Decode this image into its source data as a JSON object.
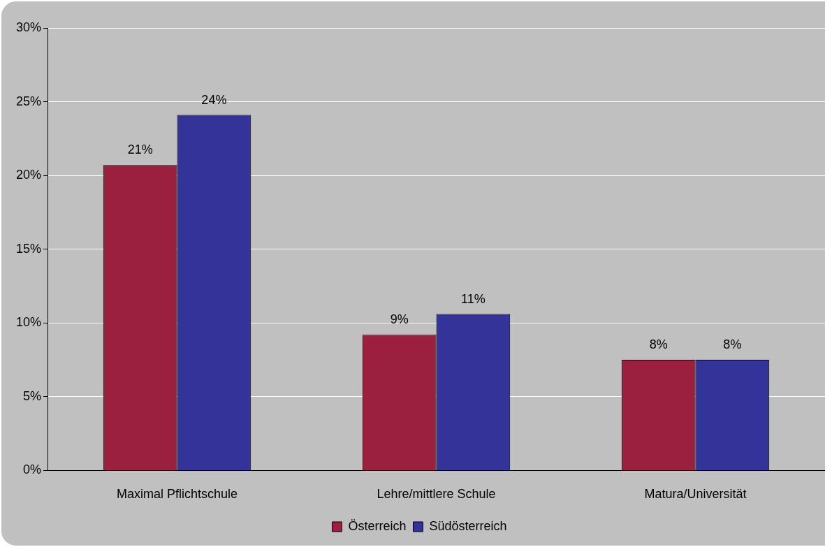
{
  "chart_data": {
    "type": "bar",
    "categories": [
      "Maximal Pflichtschule",
      "Lehre/mittlere Schule",
      "Matura/Universität"
    ],
    "series": [
      {
        "name": "Österreich",
        "color": "#9b2040",
        "values": [
          20.7,
          9.2,
          7.5
        ],
        "value_labels": [
          "21%",
          "9%",
          "8%"
        ]
      },
      {
        "name": "Südösterreich",
        "color": "#333399",
        "values": [
          24.1,
          10.6,
          7.5
        ],
        "value_labels": [
          "24%",
          "11%",
          "8%"
        ]
      }
    ],
    "ylim": [
      0,
      30
    ],
    "yticks": [
      {
        "value": 0,
        "label": "0%"
      },
      {
        "value": 5,
        "label": "5%"
      },
      {
        "value": 10,
        "label": "10%"
      },
      {
        "value": 15,
        "label": "15%"
      },
      {
        "value": 20,
        "label": "20%"
      },
      {
        "value": 25,
        "label": "25%"
      },
      {
        "value": 30,
        "label": "30%"
      }
    ],
    "grid": "y",
    "legend": "bottom"
  }
}
